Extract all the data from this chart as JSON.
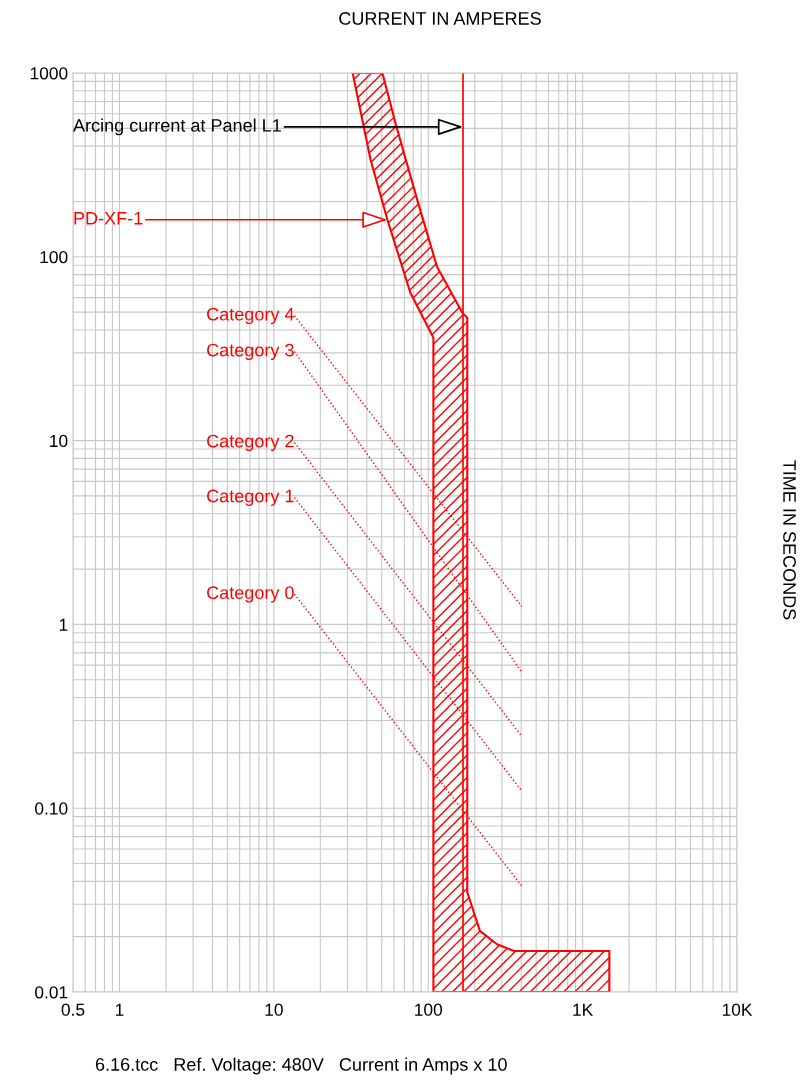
{
  "chart_data": {
    "type": "area",
    "title": "CURRENT IN AMPERES",
    "ylabel": "TIME IN SECONDS",
    "log": "xy",
    "grid": true,
    "legend": false,
    "xlim": [
      0.5,
      10000
    ],
    "ylim": [
      0.01,
      1000
    ],
    "xticks": [
      0.5,
      1,
      10,
      100,
      {
        "value": 1000,
        "label": "1K"
      },
      {
        "value": 10000,
        "label": "10K"
      }
    ],
    "yticks": [
      0.01,
      {
        "value": 0.1,
        "label": "0.10"
      },
      1,
      10,
      100,
      1000
    ],
    "series": [
      {
        "color": "#ff0000",
        "x": [
          32.4,
          42.3,
          54.4,
          76.6,
          108,
          108,
          1490,
          1490,
          359,
          279,
          216,
          179,
          179,
          166,
          114,
          84.9,
          61.3,
          50.5
        ],
        "values": [
          1000,
          337,
          159,
          63.7,
          36.3,
          0.01,
          0.01,
          0.0167,
          0.0167,
          0.0182,
          0.0215,
          0.0349,
          46.6,
          49.7,
          88.3,
          204,
          535,
          1000
        ]
      },
      {
        "type": "line",
        "name": "Category 4",
        "color": "#ff0000",
        "line_style": "dotted",
        "x": [
          13.6,
          404
        ],
        "values": [
          47.8,
          1.25
        ]
      },
      {
        "type": "line",
        "name": "Category 3",
        "color": "#ff0000",
        "line_style": "dotted",
        "x": [
          13.6,
          404
        ],
        "values": [
          30.5,
          0.55
        ]
      },
      {
        "type": "line",
        "name": "Category 2",
        "color": "#ff0000",
        "line_style": "dotted",
        "x": [
          13.6,
          404
        ],
        "values": [
          9.75,
          0.246
        ]
      },
      {
        "type": "line",
        "name": "Category 1",
        "color": "#ff0000",
        "line_style": "dotted",
        "x": [
          13.6,
          404
        ],
        "values": [
          4.9,
          0.124
        ]
      },
      {
        "type": "line",
        "name": "Category 0",
        "color": "#ff0000",
        "line_style": "dotted",
        "x": [
          13.6,
          404
        ],
        "values": [
          1.46,
          0.0377
        ]
      }
    ],
    "ref_lines": [
      {
        "axis": "x",
        "value": 168,
        "color": "#ff0000"
      }
    ],
    "annotations": [
      {
        "text": "Arcing current at Panel L1",
        "x": 168,
        "y": 509
      },
      {
        "text": "PD-XF-1",
        "x": 54.4,
        "y": 159
      },
      "6.16.tcc   Ref. Voltage: 480V   Current in Amps x 10"
    ]
  }
}
